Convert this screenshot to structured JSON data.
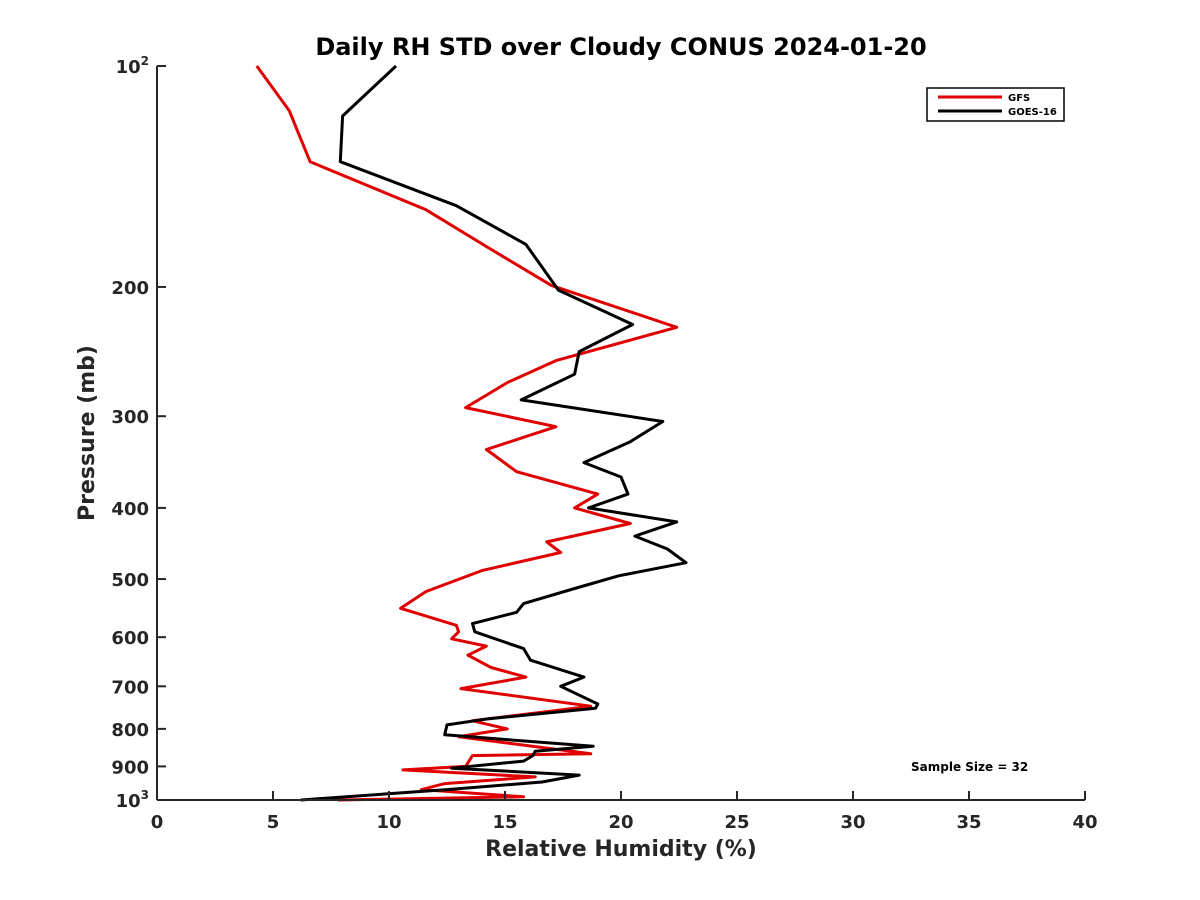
{
  "chart_data": {
    "type": "line",
    "title": "Daily RH STD over Cloudy CONUS 2024-01-20",
    "xlabel": "Relative Humidity (%)",
    "ylabel": "Pressure (mb)",
    "xlim": [
      0,
      40
    ],
    "ylim": [
      100,
      1000
    ],
    "yscale": "log",
    "y_reversed": true,
    "grid": false,
    "x_ticks": [
      0,
      5,
      10,
      15,
      20,
      25,
      30,
      35,
      40
    ],
    "x_tick_labels": [
      "0",
      "5",
      "10",
      "15",
      "20",
      "25",
      "30",
      "35",
      "40"
    ],
    "y_ticks": [
      {
        "value": 100,
        "label": "10",
        "sup": "2"
      },
      {
        "value": 200,
        "label": "200",
        "sup": ""
      },
      {
        "value": 300,
        "label": "300",
        "sup": ""
      },
      {
        "value": 400,
        "label": "400",
        "sup": ""
      },
      {
        "value": 500,
        "label": "500",
        "sup": ""
      },
      {
        "value": 600,
        "label": "600",
        "sup": ""
      },
      {
        "value": 700,
        "label": "700",
        "sup": ""
      },
      {
        "value": 800,
        "label": "800",
        "sup": ""
      },
      {
        "value": 900,
        "label": "900",
        "sup": ""
      },
      {
        "value": 1000,
        "label": "10",
        "sup": "3"
      }
    ],
    "legend_position": "top-right",
    "series": [
      {
        "name": "GFS",
        "color": "#e00000",
        "points": [
          [
            4.3,
            100
          ],
          [
            5.7,
            115
          ],
          [
            6.6,
            135
          ],
          [
            11.6,
            157
          ],
          [
            14.3,
            177
          ],
          [
            17.0,
            199
          ],
          [
            22.4,
            227
          ],
          [
            17.2,
            252
          ],
          [
            15.1,
            270
          ],
          [
            13.3,
            292
          ],
          [
            17.2,
            310
          ],
          [
            14.2,
            333
          ],
          [
            15.5,
            357
          ],
          [
            19.0,
            383
          ],
          [
            18.0,
            400
          ],
          [
            20.4,
            420
          ],
          [
            16.8,
            445
          ],
          [
            17.4,
            460
          ],
          [
            14.0,
            487
          ],
          [
            11.6,
            520
          ],
          [
            10.5,
            548
          ],
          [
            12.9,
            578
          ],
          [
            13.0,
            590
          ],
          [
            12.7,
            603
          ],
          [
            14.2,
            617
          ],
          [
            13.4,
            635
          ],
          [
            14.4,
            660
          ],
          [
            15.9,
            680
          ],
          [
            13.1,
            705
          ],
          [
            18.7,
            745
          ],
          [
            13.6,
            780
          ],
          [
            15.1,
            800
          ],
          [
            13.0,
            820
          ],
          [
            18.7,
            865
          ],
          [
            13.6,
            870
          ],
          [
            13.3,
            900
          ],
          [
            10.6,
            910
          ],
          [
            16.3,
            930
          ],
          [
            12.4,
            950
          ],
          [
            11.4,
            968
          ],
          [
            15.8,
            990
          ],
          [
            7.8,
            1000
          ]
        ]
      },
      {
        "name": "GOES-16",
        "color": "#000000",
        "points": [
          [
            10.3,
            100
          ],
          [
            8.0,
            117
          ],
          [
            7.9,
            135
          ],
          [
            12.9,
            155
          ],
          [
            15.9,
            175
          ],
          [
            17.3,
            202
          ],
          [
            20.5,
            225
          ],
          [
            18.2,
            245
          ],
          [
            18.0,
            263
          ],
          [
            15.7,
            285
          ],
          [
            21.8,
            305
          ],
          [
            20.4,
            325
          ],
          [
            18.4,
            347
          ],
          [
            20.0,
            363
          ],
          [
            20.3,
            383
          ],
          [
            18.6,
            400
          ],
          [
            22.4,
            418
          ],
          [
            20.6,
            437
          ],
          [
            22.0,
            455
          ],
          [
            22.8,
            475
          ],
          [
            19.9,
            495
          ],
          [
            18.0,
            515
          ],
          [
            15.8,
            540
          ],
          [
            15.5,
            555
          ],
          [
            13.6,
            575
          ],
          [
            13.7,
            590
          ],
          [
            15.8,
            622
          ],
          [
            16.1,
            645
          ],
          [
            18.4,
            680
          ],
          [
            17.4,
            700
          ],
          [
            19.0,
            740
          ],
          [
            18.9,
            750
          ],
          [
            14.3,
            775
          ],
          [
            12.5,
            790
          ],
          [
            12.4,
            815
          ],
          [
            18.8,
            845
          ],
          [
            16.3,
            858
          ],
          [
            16.2,
            870
          ],
          [
            15.8,
            885
          ],
          [
            12.7,
            905
          ],
          [
            18.2,
            925
          ],
          [
            16.6,
            945
          ],
          [
            12.5,
            968
          ],
          [
            6.2,
            1000
          ]
        ]
      }
    ],
    "annotations": [
      "Sample Size = 32"
    ]
  }
}
